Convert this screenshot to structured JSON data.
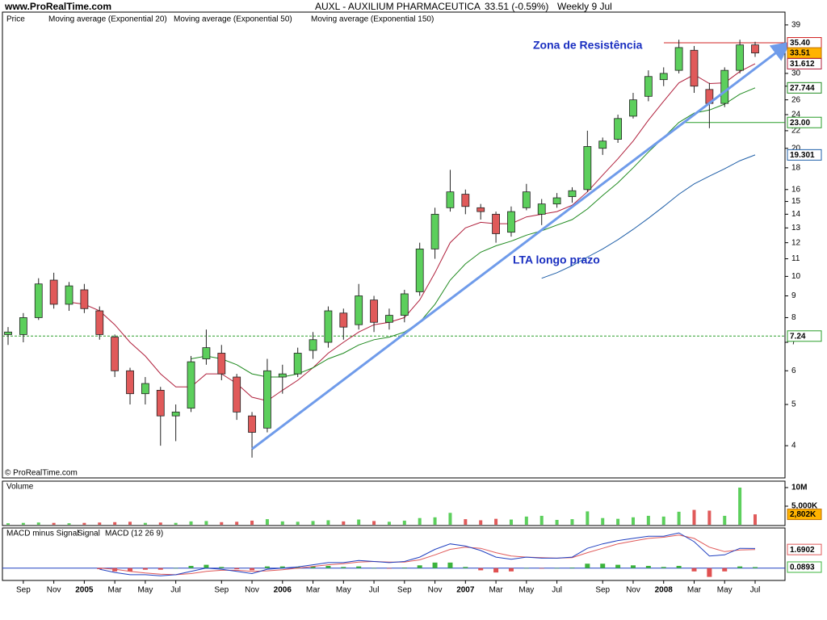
{
  "header": {
    "site": "www.ProRealTime.com",
    "title": "AUXL - AUXILIUM PHARMACEUTICA",
    "quote": "33.51 (-0.59%)",
    "period": "Weekly  9 Jul"
  },
  "footer": "© ProRealTime.com",
  "chart_data": [
    {
      "type": "candlestick",
      "price_name": "Price",
      "log_scale": true,
      "up_color": "#5ccf5c",
      "down_color": "#e05a5a",
      "categories": [
        null,
        "Sep",
        null,
        "Nov",
        null,
        "2005",
        null,
        "Mar",
        null,
        "May",
        null,
        "Jul",
        null,
        null,
        "Sep",
        null,
        "Nov",
        null,
        "2006",
        null,
        "Mar",
        null,
        "May",
        null,
        "Jul",
        null,
        "Sep",
        null,
        "Nov",
        null,
        "2007",
        null,
        "Mar",
        null,
        "May",
        null,
        "Jul",
        null,
        null,
        "Sep",
        null,
        "Nov",
        null,
        "2008",
        null,
        "Mar",
        null,
        "May",
        null,
        "Jul"
      ],
      "open": [
        7.3,
        7.3,
        8.0,
        9.8,
        8.6,
        9.3,
        8.3,
        7.2,
        6.0,
        5.3,
        5.4,
        4.7,
        4.9,
        6.4,
        6.6,
        5.8,
        4.7,
        4.4,
        5.8,
        5.9,
        6.7,
        7.0,
        8.2,
        7.7,
        8.8,
        7.8,
        8.1,
        9.2,
        11.6,
        14.5,
        15.6,
        14.5,
        14.0,
        12.7,
        14.5,
        14.0,
        14.8,
        15.4,
        16.0,
        20.0,
        21.0,
        23.8,
        26.5,
        29.0,
        30.5,
        34.0,
        27.5,
        25.5,
        30.5,
        35.0
      ],
      "high": [
        7.6,
        8.2,
        9.9,
        10.2,
        9.7,
        9.6,
        8.5,
        7.3,
        6.1,
        5.8,
        5.5,
        5.0,
        6.5,
        7.5,
        6.9,
        5.9,
        4.8,
        6.4,
        6.2,
        6.8,
        7.4,
        8.5,
        8.4,
        9.6,
        9.0,
        8.4,
        9.3,
        12.0,
        14.5,
        17.8,
        16.0,
        14.8,
        14.2,
        14.6,
        16.5,
        15.2,
        15.7,
        16.2,
        22.0,
        21.2,
        24.0,
        27.0,
        30.5,
        31.0,
        36.0,
        34.8,
        28.5,
        31.0,
        36.0,
        35.6
      ],
      "low": [
        6.9,
        7.0,
        7.9,
        8.4,
        8.3,
        8.2,
        7.1,
        5.8,
        5.0,
        5.0,
        4.0,
        4.1,
        4.8,
        6.2,
        5.7,
        4.6,
        3.75,
        4.3,
        5.3,
        5.8,
        6.4,
        6.8,
        7.1,
        7.5,
        7.4,
        7.5,
        7.8,
        9.0,
        11.0,
        14.2,
        14.0,
        13.6,
        12.0,
        12.4,
        14.3,
        13.2,
        14.5,
        14.9,
        15.8,
        19.3,
        20.6,
        23.5,
        25.8,
        28.0,
        30.0,
        27.0,
        22.3,
        25.0,
        30.0,
        32.8
      ],
      "close": [
        7.4,
        8.0,
        9.6,
        8.6,
        9.5,
        8.4,
        7.3,
        6.0,
        5.3,
        5.6,
        4.7,
        4.8,
        6.3,
        6.8,
        5.9,
        4.8,
        4.3,
        6.0,
        5.9,
        6.6,
        7.1,
        8.3,
        7.6,
        9.0,
        7.8,
        8.1,
        9.1,
        11.6,
        14.0,
        15.8,
        14.6,
        14.2,
        12.6,
        14.2,
        15.8,
        14.8,
        15.3,
        15.9,
        20.2,
        20.8,
        23.5,
        26.0,
        29.5,
        30.0,
        34.5,
        28.0,
        25.5,
        30.5,
        35.0,
        33.51
      ],
      "series": [
        {
          "name": "Moving average (Exponential 20)",
          "color": "#b0203c",
          "values": [
            null,
            null,
            null,
            null,
            8.7,
            8.6,
            8.3,
            7.7,
            7.0,
            6.5,
            5.9,
            5.5,
            5.5,
            5.9,
            5.9,
            5.6,
            5.2,
            5.1,
            5.4,
            5.7,
            6.1,
            6.6,
            7.0,
            7.4,
            7.7,
            7.8,
            8.0,
            8.8,
            10.2,
            12.0,
            13.0,
            13.4,
            13.3,
            13.3,
            13.8,
            14.0,
            14.2,
            14.7,
            15.8,
            17.3,
            18.9,
            20.8,
            23.3,
            25.8,
            28.5,
            29.8,
            28.4,
            28.5,
            30.3,
            31.612
          ]
        },
        {
          "name": "Moving average (Exponential 50)",
          "color": "#1f8a1f",
          "values": [
            null,
            null,
            null,
            null,
            null,
            null,
            null,
            null,
            null,
            null,
            null,
            null,
            6.4,
            6.5,
            6.4,
            6.2,
            5.9,
            5.8,
            5.8,
            5.9,
            6.1,
            6.4,
            6.6,
            6.9,
            7.1,
            7.2,
            7.4,
            7.8,
            8.6,
            9.8,
            10.7,
            11.4,
            11.8,
            12.1,
            12.5,
            12.8,
            13.2,
            13.6,
            14.4,
            15.5,
            16.6,
            18.0,
            19.6,
            21.2,
            23.0,
            24.2,
            24.6,
            25.4,
            26.8,
            27.744
          ]
        },
        {
          "name": "Moving average (Exponential 150)",
          "color": "#1f5fa8",
          "values": [
            null,
            null,
            null,
            null,
            null,
            null,
            null,
            null,
            null,
            null,
            null,
            null,
            null,
            null,
            null,
            null,
            null,
            null,
            null,
            null,
            null,
            null,
            null,
            null,
            null,
            null,
            null,
            null,
            null,
            null,
            null,
            null,
            null,
            null,
            null,
            9.9,
            10.2,
            10.6,
            11.1,
            11.6,
            12.2,
            12.9,
            13.7,
            14.6,
            15.6,
            16.5,
            17.2,
            17.9,
            18.7,
            19.301
          ]
        }
      ],
      "ylim": [
        3.36,
        41.8
      ],
      "yticks": [
        4,
        5,
        6,
        7,
        8,
        9,
        10,
        11,
        12,
        13,
        14,
        15,
        16,
        18,
        20,
        22,
        24,
        26,
        28,
        30,
        39
      ],
      "levels": [
        {
          "value": 35.4,
          "label": "35.40",
          "color": "#d02020",
          "dashed": false
        },
        {
          "value": 23,
          "label": "23.00",
          "color": "#2a9d2a",
          "dashed": false
        },
        {
          "value": 7.24,
          "color": "#2a9d2a",
          "dashed": true
        }
      ],
      "trendline": {
        "start": 3.93,
        "end": 34.8,
        "color": "#6f9bea"
      },
      "annotations": [
        "Zona de Resistência",
        "LTA longo prazo"
      ]
    },
    {
      "type": "bar",
      "title": "Volume",
      "values": [
        400000,
        500000,
        600000,
        500000,
        400000,
        500000,
        600000,
        700000,
        800000,
        500000,
        600000,
        500000,
        900000,
        1000000,
        700000,
        800000,
        1100000,
        1500000,
        900000,
        800000,
        1000000,
        1200000,
        900000,
        1400000,
        1000000,
        800000,
        1100000,
        1800000,
        2000000,
        3200000,
        1500000,
        1200000,
        1600000,
        1400000,
        2200000,
        2400000,
        1300000,
        1500000,
        3600000,
        1800000,
        1600000,
        2000000,
        2400000,
        2200000,
        3500000,
        4000000,
        3800000,
        2400000,
        10000000,
        2802000
      ],
      "value_labels": [
        null,
        null,
        null,
        null,
        null,
        null,
        null,
        null,
        null,
        null,
        null,
        null,
        null,
        null,
        null,
        null,
        null,
        null,
        null,
        null,
        null,
        null,
        null,
        null,
        null,
        null,
        null,
        null,
        null,
        null,
        null,
        null,
        null,
        null,
        null,
        null,
        null,
        null,
        null,
        null,
        null,
        null,
        null,
        null,
        null,
        null,
        null,
        null,
        null,
        "2,802K"
      ],
      "ylim": [
        0,
        11300000
      ],
      "yticks": [
        {
          "value": 10000000,
          "label": "10M"
        },
        {
          "value": 5000000,
          "label": "5,000K"
        }
      ]
    },
    {
      "type": "macd",
      "series": [
        {
          "name": "MACD minus Signal",
          "color": "#3cb43c",
          "negative_color": "#e05050",
          "values": [
            null,
            null,
            null,
            null,
            null,
            null,
            -0.1,
            -0.3,
            -0.3,
            -0.15,
            -0.15,
            0.0,
            0.2,
            0.3,
            0.1,
            -0.1,
            -0.2,
            0.15,
            0.15,
            0.1,
            0.15,
            0.2,
            0.1,
            0.15,
            0.0,
            -0.05,
            0.05,
            0.25,
            0.5,
            0.5,
            0.1,
            -0.2,
            -0.4,
            -0.3,
            0.0,
            -0.05,
            0.0,
            0.05,
            0.4,
            0.4,
            0.3,
            0.25,
            0.2,
            0.1,
            0.2,
            -0.3,
            -0.8,
            -0.3,
            0.15,
            0.0893
          ]
        },
        {
          "name": "Signal",
          "color": "#e05a5a",
          "values": [
            null,
            null,
            null,
            null,
            null,
            null,
            0.0,
            -0.1,
            -0.3,
            -0.45,
            -0.55,
            -0.6,
            -0.5,
            -0.3,
            -0.2,
            -0.2,
            -0.3,
            -0.25,
            -0.15,
            0.0,
            0.15,
            0.3,
            0.4,
            0.55,
            0.6,
            0.55,
            0.55,
            0.75,
            1.2,
            1.7,
            1.9,
            1.8,
            1.4,
            1.1,
            1.0,
            0.95,
            0.9,
            0.95,
            1.4,
            1.8,
            2.2,
            2.45,
            2.7,
            2.8,
            3.0,
            2.7,
            1.9,
            1.5,
            1.65,
            1.6902
          ]
        },
        {
          "name": "MACD (12 26 9)",
          "color": "#2040c0",
          "values": [
            null,
            null,
            null,
            null,
            null,
            null,
            -0.1,
            -0.4,
            -0.6,
            -0.6,
            -0.7,
            -0.6,
            -0.3,
            0.0,
            -0.1,
            -0.3,
            -0.5,
            -0.1,
            0.0,
            0.1,
            0.3,
            0.5,
            0.5,
            0.7,
            0.6,
            0.5,
            0.6,
            1.0,
            1.7,
            2.2,
            2.0,
            1.6,
            1.0,
            0.8,
            1.0,
            0.9,
            0.9,
            1.0,
            1.8,
            2.2,
            2.5,
            2.7,
            2.9,
            2.9,
            3.2,
            2.4,
            1.1,
            1.2,
            1.8,
            1.7795
          ]
        }
      ],
      "ylim": [
        -1.05,
        3.5
      ]
    }
  ]
}
